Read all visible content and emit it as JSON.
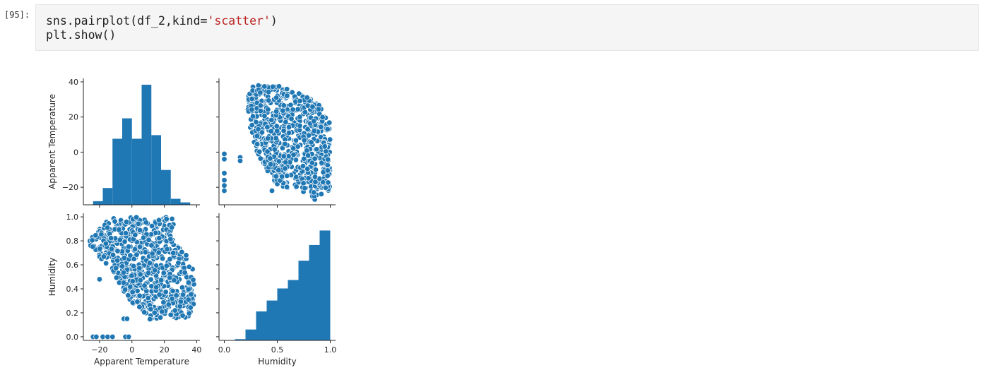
{
  "cell": {
    "prompt": "[95]:",
    "code_line1_fn": "sns.pairplot(df_2,kind=",
    "code_line1_str": "'scatter'",
    "code_line1_end": ")",
    "code_line2": "plt.show()"
  },
  "colors": {
    "marker": "#1f77b4",
    "marker_edge": "#ffffff"
  },
  "chart_data": {
    "type": "pairplot",
    "variables": [
      "Apparent Temperature",
      "Humidity"
    ],
    "panels": [
      {
        "row": "Apparent Temperature",
        "col": "Apparent Temperature",
        "type": "bar",
        "bins": [
          -24,
          -18,
          -12,
          -6,
          0,
          6,
          12,
          18,
          24,
          30,
          36
        ],
        "relative_counts": [
          0.03,
          0.14,
          0.55,
          0.72,
          0.55,
          1.0,
          0.58,
          0.29,
          0.05,
          0.02
        ],
        "xlim": [
          -30,
          42
        ],
        "ylim": [
          -30,
          42
        ]
      },
      {
        "row": "Apparent Temperature",
        "col": "Humidity",
        "type": "scatter",
        "xlim": [
          -0.05,
          1.05
        ],
        "ylim": [
          -30,
          42
        ],
        "region": {
          "x": [
            0.23,
            0.3,
            0.36,
            0.42,
            0.5,
            0.57,
            0.64,
            0.72,
            0.8,
            0.87,
            0.93,
            0.98,
            1.0,
            1.0,
            0.98,
            0.94,
            0.9,
            0.86,
            0.8,
            0.73,
            0.66,
            0.58,
            0.5,
            0.43,
            0.37,
            0.31,
            0.27,
            0.24,
            0.22
          ],
          "y": [
            37,
            38,
            38,
            38,
            38,
            37,
            35,
            33,
            31,
            28,
            25,
            23,
            22,
            -20,
            -22,
            -24,
            -26,
            -28,
            -25,
            -22,
            -21,
            -21,
            -20,
            -14,
            -7,
            0,
            8,
            15,
            25
          ]
        },
        "outliers": [
          {
            "x": 0.0,
            "y": -1
          },
          {
            "x": 0.0,
            "y": -4
          },
          {
            "x": 0.0,
            "y": -12
          },
          {
            "x": 0.0,
            "y": -16
          },
          {
            "x": 0.0,
            "y": -19
          },
          {
            "x": 0.0,
            "y": -22
          },
          {
            "x": 0.15,
            "y": -3
          },
          {
            "x": 0.15,
            "y": -5
          },
          {
            "x": 0.45,
            "y": -22
          }
        ]
      },
      {
        "row": "Humidity",
        "col": "Apparent Temperature",
        "type": "scatter",
        "xlim": [
          -30,
          42
        ],
        "ylim": [
          -0.03,
          1.03
        ],
        "region": {
          "x": [
            -28,
            -25,
            -20,
            -16,
            -10,
            -4,
            0,
            5,
            10,
            15,
            20,
            25,
            27,
            30,
            33,
            36,
            38,
            39,
            40,
            39,
            37,
            34,
            31,
            28,
            25,
            22,
            19,
            16,
            13,
            10,
            6,
            2,
            -2,
            -6,
            -10,
            -14,
            -18,
            -22,
            -26,
            -28
          ],
          "y": [
            0.78,
            0.82,
            0.91,
            0.96,
            1.0,
            1.0,
            1.0,
            1.0,
            1.0,
            1.0,
            1.0,
            0.99,
            0.82,
            0.75,
            0.7,
            0.62,
            0.55,
            0.48,
            0.45,
            0.3,
            0.2,
            0.15,
            0.13,
            0.14,
            0.15,
            0.16,
            0.17,
            0.15,
            0.12,
            0.15,
            0.2,
            0.25,
            0.32,
            0.4,
            0.5,
            0.57,
            0.63,
            0.7,
            0.75,
            0.78
          ]
        },
        "outliers": [
          {
            "x": -24,
            "y": 0.0
          },
          {
            "x": -22,
            "y": 0.0
          },
          {
            "x": -18,
            "y": 0.0
          },
          {
            "x": -15,
            "y": 0.0
          },
          {
            "x": -12,
            "y": 0.0
          },
          {
            "x": -4,
            "y": 0.0
          },
          {
            "x": -2,
            "y": 0.0
          },
          {
            "x": -5,
            "y": 0.15
          },
          {
            "x": -3,
            "y": 0.15
          },
          {
            "x": -20,
            "y": 0.48
          }
        ]
      },
      {
        "row": "Humidity",
        "col": "Humidity",
        "type": "bar",
        "bins": [
          0.0,
          0.1,
          0.2,
          0.3,
          0.4,
          0.5,
          0.6,
          0.7,
          0.8,
          0.9,
          1.0
        ],
        "relative_counts": [
          0.0,
          0.01,
          0.09,
          0.24,
          0.33,
          0.43,
          0.5,
          0.66,
          0.79,
          0.91
        ],
        "xlim": [
          -0.05,
          1.05
        ],
        "ylim": [
          -0.03,
          1.03
        ]
      }
    ],
    "x_ticks": {
      "Apparent Temperature": [
        {
          "value": -20,
          "label": "−20"
        },
        {
          "value": 0,
          "label": "0"
        },
        {
          "value": 20,
          "label": "20"
        },
        {
          "value": 40,
          "label": "40"
        }
      ],
      "Humidity": [
        {
          "value": 0.0,
          "label": "0.0"
        },
        {
          "value": 0.5,
          "label": "0.5"
        },
        {
          "value": 1.0,
          "label": "1.0"
        }
      ]
    },
    "y_ticks": {
      "Apparent Temperature": [
        {
          "value": -20,
          "label": "−20"
        },
        {
          "value": 0,
          "label": "0"
        },
        {
          "value": 20,
          "label": "20"
        },
        {
          "value": 40,
          "label": "40"
        }
      ],
      "Humidity": [
        {
          "value": 0.0,
          "label": "0.0"
        },
        {
          "value": 0.2,
          "label": "0.2"
        },
        {
          "value": 0.4,
          "label": "0.4"
        },
        {
          "value": 0.6,
          "label": "0.6"
        },
        {
          "value": 0.8,
          "label": "0.8"
        },
        {
          "value": 1.0,
          "label": "1.0"
        }
      ]
    },
    "xlabels": [
      "Apparent Temperature",
      "Humidity"
    ],
    "ylabels": [
      "Apparent Temperature",
      "Humidity"
    ],
    "grid": false
  }
}
